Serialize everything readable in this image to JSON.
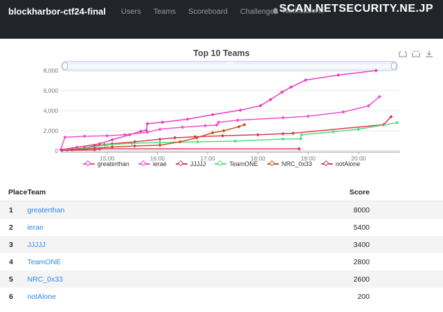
{
  "navbar": {
    "brand": "blockharbor-ctf24-final",
    "items": [
      "Users",
      "Teams",
      "Scoreboard",
      "Challenges"
    ],
    "notifications_label": "Notifications",
    "watermark": "SCAN.NETSECURITY.NE.JP",
    "bg_color": "#212529"
  },
  "chart": {
    "title": "Top 10 Teams",
    "toolbox_icons": [
      "zoom-select-icon",
      "restore-icon",
      "save-image-icon"
    ],
    "legend_position": "bottom",
    "grid": true
  },
  "chart_data": {
    "type": "line",
    "title": "Top 10 Teams",
    "xlabel": "",
    "ylabel": "",
    "x_unit": "time (HH:MM)",
    "xlim_hours": [
      14.08,
      20.83
    ],
    "ylim": [
      0,
      8000
    ],
    "yticks": [
      {
        "v": 0,
        "label": "0"
      },
      {
        "v": 2000,
        "label": "2,000"
      },
      {
        "v": 4000,
        "label": "4,000"
      },
      {
        "v": 6000,
        "label": "6,000"
      },
      {
        "v": 8000,
        "label": "8,000"
      }
    ],
    "xticks": [
      {
        "t": 15,
        "label": "15:00"
      },
      {
        "t": 16,
        "label": "16:00"
      },
      {
        "t": 17,
        "label": "17:00"
      },
      {
        "t": 18,
        "label": "18:00"
      },
      {
        "t": 19,
        "label": "19:00"
      },
      {
        "t": 20,
        "label": "20:00"
      }
    ],
    "series": [
      {
        "name": "greaterthan",
        "color": "#e83bbd",
        "final_score": 8000,
        "points": [
          [
            14.08,
            100
          ],
          [
            14.4,
            350
          ],
          [
            14.85,
            700
          ],
          [
            15.1,
            1100
          ],
          [
            15.45,
            1600
          ],
          [
            15.67,
            1950
          ],
          [
            15.78,
            2050
          ],
          [
            15.8,
            2700
          ],
          [
            16.1,
            2850
          ],
          [
            16.6,
            3150
          ],
          [
            17.1,
            3600
          ],
          [
            17.65,
            4050
          ],
          [
            18.05,
            4500
          ],
          [
            18.25,
            5100
          ],
          [
            18.48,
            5850
          ],
          [
            18.66,
            6350
          ],
          [
            18.95,
            7050
          ],
          [
            19.6,
            7550
          ],
          [
            20.35,
            8000
          ]
        ]
      },
      {
        "name": "ierae",
        "color": "#ef4fc8",
        "final_score": 5400,
        "points": [
          [
            14.08,
            150
          ],
          [
            14.16,
            1350
          ],
          [
            14.55,
            1450
          ],
          [
            15.0,
            1500
          ],
          [
            15.35,
            1600
          ],
          [
            15.8,
            1850
          ],
          [
            16.05,
            2150
          ],
          [
            16.5,
            2350
          ],
          [
            16.95,
            2500
          ],
          [
            17.18,
            2570
          ],
          [
            17.22,
            2850
          ],
          [
            17.6,
            3050
          ],
          [
            18.5,
            3300
          ],
          [
            19.0,
            3450
          ],
          [
            19.7,
            3870
          ],
          [
            20.2,
            4480
          ],
          [
            20.42,
            5400
          ]
        ]
      },
      {
        "name": "JJJJJ",
        "color": "#d83a4e",
        "final_score": 3400,
        "points": [
          [
            14.2,
            100
          ],
          [
            14.55,
            300
          ],
          [
            14.75,
            500
          ],
          [
            14.95,
            600
          ],
          [
            15.1,
            700
          ],
          [
            15.55,
            900
          ],
          [
            16.05,
            1150
          ],
          [
            16.35,
            1300
          ],
          [
            16.75,
            1400
          ],
          [
            17.3,
            1500
          ],
          [
            18.0,
            1600
          ],
          [
            18.5,
            1700
          ],
          [
            18.7,
            1750
          ],
          [
            20.5,
            2600
          ],
          [
            20.65,
            3400
          ]
        ]
      },
      {
        "name": "TeamONE",
        "color": "#4fdd7f",
        "final_score": 2800,
        "points": [
          [
            14.2,
            50
          ],
          [
            14.6,
            300
          ],
          [
            15.0,
            600
          ],
          [
            15.5,
            750
          ],
          [
            16.05,
            830
          ],
          [
            16.8,
            900
          ],
          [
            17.55,
            965
          ],
          [
            18.5,
            1170
          ],
          [
            18.85,
            1200
          ],
          [
            18.87,
            1600
          ],
          [
            19.5,
            1900
          ],
          [
            20.0,
            2150
          ],
          [
            20.77,
            2800
          ]
        ]
      },
      {
        "name": "NRC_0x33",
        "color": "#c2551b",
        "final_score": 2600,
        "points": [
          [
            14.3,
            100
          ],
          [
            14.75,
            250
          ],
          [
            15.1,
            380
          ],
          [
            15.55,
            480
          ],
          [
            16.05,
            560
          ],
          [
            16.45,
            900
          ],
          [
            16.78,
            1300
          ],
          [
            17.1,
            1800
          ],
          [
            17.32,
            2000
          ],
          [
            17.62,
            2400
          ],
          [
            17.73,
            2600
          ]
        ]
      },
      {
        "name": "notAlone",
        "color": "#dd3366",
        "final_score": 200,
        "points": [
          [
            14.1,
            50
          ],
          [
            14.75,
            100
          ],
          [
            14.85,
            200
          ],
          [
            18.82,
            200
          ]
        ]
      }
    ]
  },
  "table": {
    "columns": [
      "Place",
      "Team",
      "Score"
    ],
    "rows": [
      {
        "place": "1",
        "team": "greaterthan",
        "score": "8000"
      },
      {
        "place": "2",
        "team": "ierae",
        "score": "5400"
      },
      {
        "place": "3",
        "team": "JJJJJ",
        "score": "3400"
      },
      {
        "place": "4",
        "team": "TeamONE",
        "score": "2800"
      },
      {
        "place": "5",
        "team": "NRC_0x33",
        "score": "2600"
      },
      {
        "place": "6",
        "team": "notAlone",
        "score": "200"
      }
    ]
  }
}
